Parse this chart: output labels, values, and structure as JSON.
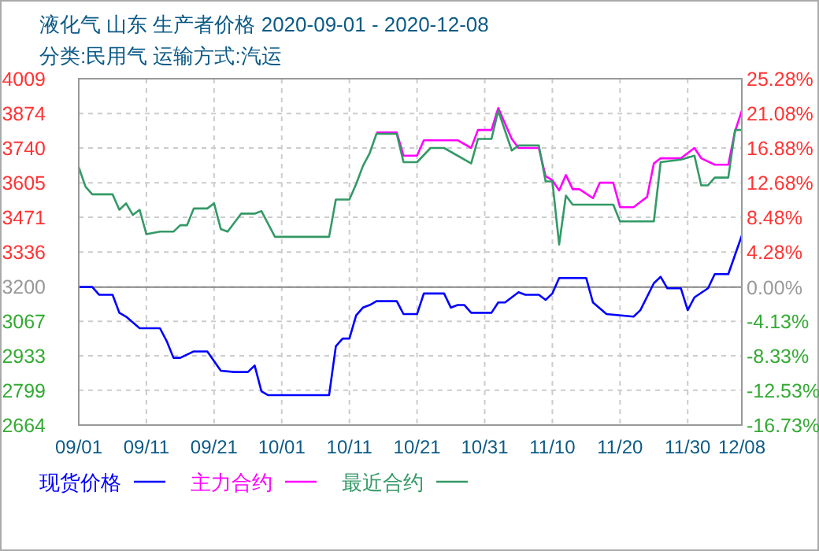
{
  "chart_data": {
    "type": "line",
    "title": "液化气 山东 生产者价格 2020-09-01 - 2020-12-08",
    "subtitle": "分类:民用气 运输方式:汽运",
    "ylim": [
      2664,
      4009
    ],
    "yticks": [
      2664,
      2799,
      2933,
      3067,
      3200,
      3336,
      3471,
      3605,
      3740,
      3874,
      4009
    ],
    "y2lim": [
      -16.73,
      25.28
    ],
    "y2ticks": [
      {
        "value": -16.73,
        "label": "-16.73%"
      },
      {
        "value": -12.53,
        "label": "-12.53%"
      },
      {
        "value": -8.33,
        "label": "-8.33%"
      },
      {
        "value": -4.13,
        "label": "-4.13%"
      },
      {
        "value": 0,
        "label": "0.00%"
      },
      {
        "value": 4.28,
        "label": "4.28%"
      },
      {
        "value": 8.48,
        "label": "8.48%"
      },
      {
        "value": 12.68,
        "label": "12.68%"
      },
      {
        "value": 16.88,
        "label": "16.88%"
      },
      {
        "value": 21.08,
        "label": "21.08%"
      },
      {
        "value": 25.28,
        "label": "25.28%"
      }
    ],
    "xlim": [
      "2020-09-01",
      "2020-12-08"
    ],
    "xticks": [
      {
        "value": "2020-09-01",
        "label": "09/01"
      },
      {
        "value": "2020-09-11",
        "label": "09/11"
      },
      {
        "value": "2020-09-21",
        "label": "09/21"
      },
      {
        "value": "2020-10-01",
        "label": "10/01"
      },
      {
        "value": "2020-10-11",
        "label": "10/11"
      },
      {
        "value": "2020-10-21",
        "label": "10/21"
      },
      {
        "value": "2020-10-31",
        "label": "10/31"
      },
      {
        "value": "2020-11-10",
        "label": "11/10"
      },
      {
        "value": "2020-11-20",
        "label": "11/20"
      },
      {
        "value": "2020-11-30",
        "label": "11/30"
      },
      {
        "value": "2020-12-08",
        "label": "12/08"
      }
    ],
    "grid": true,
    "legend": "bottom",
    "marker": "none",
    "line_style": "solid",
    "ref_lines": [
      {
        "axis": "y",
        "value": 3200,
        "color": "#888888"
      }
    ],
    "series": [
      {
        "name": "现货价格",
        "color": "#0000ff",
        "x": [
          "2020-09-01",
          "2020-09-03",
          "2020-09-04",
          "2020-09-06",
          "2020-09-07",
          "2020-09-08",
          "2020-09-10",
          "2020-09-13",
          "2020-09-14",
          "2020-09-15",
          "2020-09-16",
          "2020-09-18",
          "2020-09-20",
          "2020-09-22",
          "2020-09-24",
          "2020-09-26",
          "2020-09-27",
          "2020-09-28",
          "2020-09-29",
          "2020-10-08",
          "2020-10-09",
          "2020-10-10",
          "2020-10-11",
          "2020-10-12",
          "2020-10-13",
          "2020-10-14",
          "2020-10-15",
          "2020-10-18",
          "2020-10-19",
          "2020-10-21",
          "2020-10-22",
          "2020-10-25",
          "2020-10-26",
          "2020-10-27",
          "2020-10-28",
          "2020-10-29",
          "2020-11-01",
          "2020-11-02",
          "2020-11-03",
          "2020-11-05",
          "2020-11-06",
          "2020-11-08",
          "2020-11-09",
          "2020-11-10",
          "2020-11-11",
          "2020-11-15",
          "2020-11-16",
          "2020-11-18",
          "2020-11-22",
          "2020-11-23",
          "2020-11-25",
          "2020-11-26",
          "2020-11-27",
          "2020-11-29",
          "2020-11-30",
          "2020-12-01",
          "2020-12-03",
          "2020-12-04",
          "2020-12-06",
          "2020-12-08"
        ],
        "values": [
          3200,
          3200,
          3170,
          3170,
          3100,
          3085,
          3040,
          3040,
          2990,
          2925,
          2925,
          2950,
          2950,
          2875,
          2870,
          2870,
          2895,
          2795,
          2780,
          2780,
          2970,
          3000,
          3000,
          3090,
          3120,
          3130,
          3145,
          3145,
          3095,
          3095,
          3175,
          3175,
          3120,
          3130,
          3130,
          3100,
          3100,
          3140,
          3140,
          3180,
          3170,
          3170,
          3150,
          3175,
          3235,
          3235,
          3140,
          3095,
          3085,
          3110,
          3215,
          3240,
          3195,
          3195,
          3110,
          3160,
          3195,
          3250,
          3250,
          3400
        ]
      },
      {
        "name": "主力合约",
        "color": "#ff00ff",
        "x": [
          "2020-10-15",
          "2020-10-18",
          "2020-10-19",
          "2020-10-21",
          "2020-10-22",
          "2020-10-27",
          "2020-10-29",
          "2020-10-30",
          "2020-11-01",
          "2020-11-02",
          "2020-11-04",
          "2020-11-05",
          "2020-11-08",
          "2020-11-09",
          "2020-11-10",
          "2020-11-11",
          "2020-11-12",
          "2020-11-13",
          "2020-11-14",
          "2020-11-16",
          "2020-11-17",
          "2020-11-19",
          "2020-11-20",
          "2020-11-22",
          "2020-11-24",
          "2020-11-25",
          "2020-11-26",
          "2020-11-29",
          "2020-12-01",
          "2020-12-02",
          "2020-12-04",
          "2020-12-06",
          "2020-12-07",
          "2020-12-08"
        ],
        "values": [
          3800,
          3800,
          3710,
          3710,
          3770,
          3770,
          3740,
          3810,
          3810,
          3895,
          3775,
          3740,
          3740,
          3630,
          3615,
          3575,
          3635,
          3580,
          3580,
          3545,
          3605,
          3605,
          3510,
          3510,
          3550,
          3680,
          3700,
          3700,
          3740,
          3700,
          3675,
          3675,
          3805,
          3885
        ]
      },
      {
        "name": "最近合约",
        "color": "#339966",
        "x": [
          "2020-09-01",
          "2020-09-02",
          "2020-09-03",
          "2020-09-06",
          "2020-09-07",
          "2020-09-08",
          "2020-09-09",
          "2020-09-10",
          "2020-09-11",
          "2020-09-13",
          "2020-09-15",
          "2020-09-16",
          "2020-09-17",
          "2020-09-18",
          "2020-09-20",
          "2020-09-21",
          "2020-09-22",
          "2020-09-23",
          "2020-09-25",
          "2020-09-27",
          "2020-09-28",
          "2020-09-30",
          "2020-10-08",
          "2020-10-09",
          "2020-10-11",
          "2020-10-12",
          "2020-10-13",
          "2020-10-14",
          "2020-10-15",
          "2020-10-18",
          "2020-10-19",
          "2020-10-21",
          "2020-10-23",
          "2020-10-25",
          "2020-10-29",
          "2020-10-30",
          "2020-11-01",
          "2020-11-02",
          "2020-11-04",
          "2020-11-05",
          "2020-11-08",
          "2020-11-09",
          "2020-11-10",
          "2020-11-11",
          "2020-11-12",
          "2020-11-13",
          "2020-11-19",
          "2020-11-20",
          "2020-11-25",
          "2020-11-26",
          "2020-11-29",
          "2020-12-01",
          "2020-12-02",
          "2020-12-03",
          "2020-12-04",
          "2020-12-06",
          "2020-12-07",
          "2020-12-08"
        ],
        "values": [
          3665,
          3590,
          3560,
          3560,
          3500,
          3525,
          3480,
          3500,
          3405,
          3415,
          3415,
          3440,
          3440,
          3505,
          3505,
          3525,
          3425,
          3415,
          3485,
          3485,
          3495,
          3395,
          3395,
          3540,
          3540,
          3600,
          3670,
          3720,
          3795,
          3795,
          3685,
          3685,
          3740,
          3740,
          3680,
          3775,
          3775,
          3885,
          3730,
          3750,
          3750,
          3610,
          3610,
          3365,
          3555,
          3520,
          3520,
          3455,
          3455,
          3685,
          3695,
          3710,
          3595,
          3595,
          3625,
          3625,
          3810,
          3810
        ]
      }
    ]
  }
}
